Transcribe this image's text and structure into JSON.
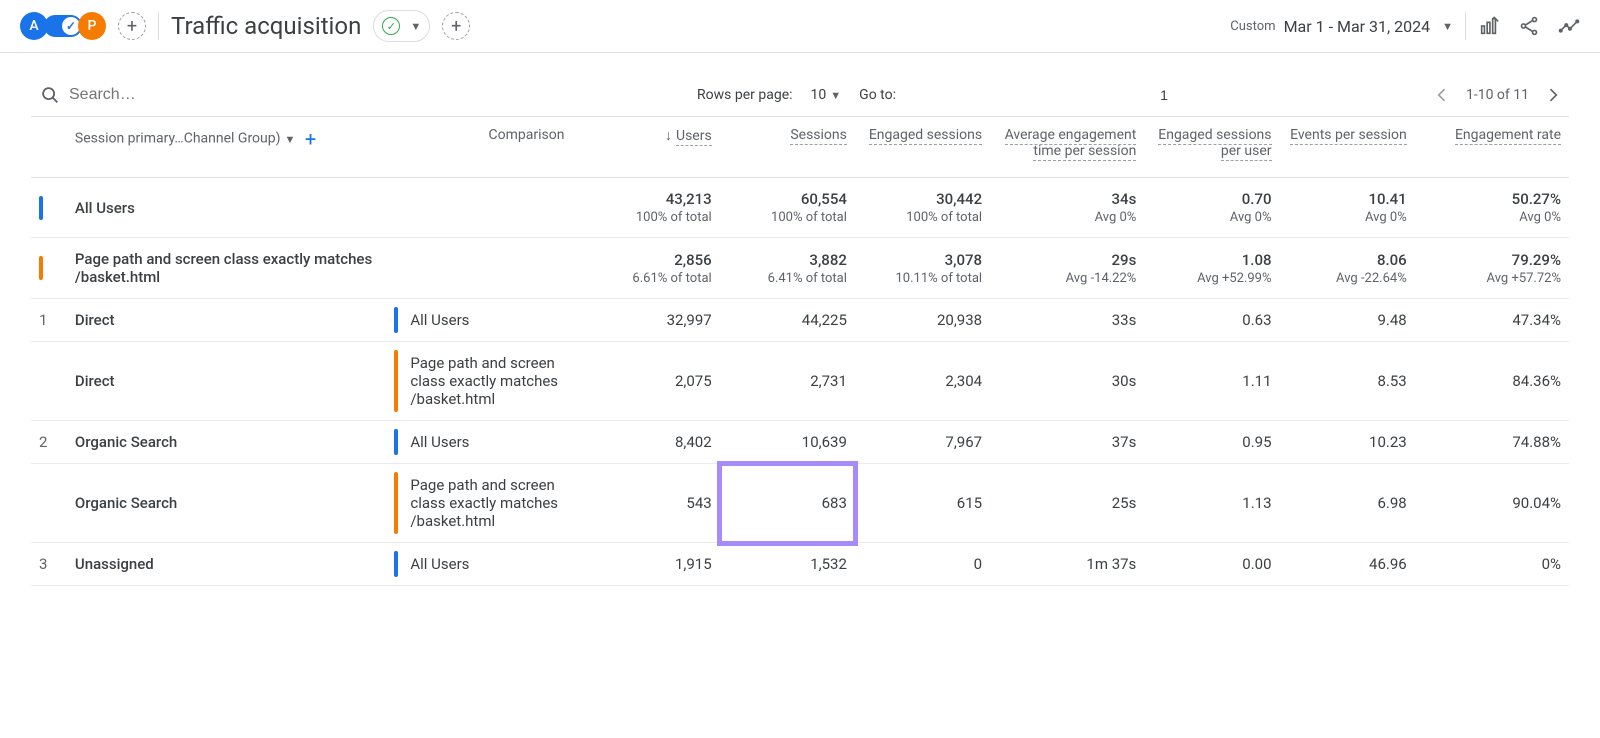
{
  "header": {
    "title": "Traffic acquisition",
    "badgeA": "A",
    "badgeP": "P",
    "dateLabel": "Custom",
    "dateRange": "Mar 1 - Mar 31, 2024"
  },
  "controls": {
    "searchPlaceholder": "Search…",
    "rowsPerPageLabel": "Rows per page:",
    "rowsPerPage": "10",
    "gotoLabel": "Go to:",
    "gotoValue": "1",
    "pageInfo": "1-10 of 11"
  },
  "columns": {
    "dimensionLabel": "Session primary…Channel Group)",
    "comparison": "Comparison",
    "users": "Users",
    "sessions": "Sessions",
    "engagedSessions": "Engaged sessions",
    "avgEngTime": "Average engagement time per session",
    "engPerUser": "Engaged sessions per user",
    "eventsPerSession": "Events per session",
    "engRate": "Engagement rate"
  },
  "segments": {
    "allUsers": "All Users",
    "basket": "Page path and screen class exactly matches /basket.html"
  },
  "summary": {
    "all": {
      "users": "43,213",
      "usersSub": "100% of total",
      "sessions": "60,554",
      "sessionsSub": "100% of total",
      "eng": "30,442",
      "engSub": "100% of total",
      "avg": "34s",
      "avgSub": "Avg 0%",
      "perUser": "0.70",
      "perUserSub": "Avg 0%",
      "events": "10.41",
      "eventsSub": "Avg 0%",
      "rate": "50.27%",
      "rateSub": "Avg 0%"
    },
    "basket": {
      "users": "2,856",
      "usersSub": "6.61% of total",
      "sessions": "3,882",
      "sessionsSub": "6.41% of total",
      "eng": "3,078",
      "engSub": "10.11% of total",
      "avg": "29s",
      "avgSub": "Avg -14.22%",
      "perUser": "1.08",
      "perUserSub": "Avg +52.99%",
      "events": "8.06",
      "eventsSub": "Avg -22.64%",
      "rate": "79.29%",
      "rateSub": "Avg +57.72%"
    }
  },
  "rows": [
    {
      "idx": "1",
      "dim": "Direct",
      "seg": "all",
      "users": "32,997",
      "sessions": "44,225",
      "eng": "20,938",
      "avg": "33s",
      "perUser": "0.63",
      "events": "9.48",
      "rate": "47.34%"
    },
    {
      "idx": "",
      "dim": "Direct",
      "seg": "basket",
      "users": "2,075",
      "sessions": "2,731",
      "eng": "2,304",
      "avg": "30s",
      "perUser": "1.11",
      "events": "8.53",
      "rate": "84.36%"
    },
    {
      "idx": "2",
      "dim": "Organic Search",
      "seg": "all",
      "users": "8,402",
      "sessions": "10,639",
      "eng": "7,967",
      "avg": "37s",
      "perUser": "0.95",
      "events": "10.23",
      "rate": "74.88%"
    },
    {
      "idx": "",
      "dim": "Organic Search",
      "seg": "basket",
      "users": "543",
      "sessions": "683",
      "eng": "615",
      "avg": "25s",
      "perUser": "1.13",
      "events": "6.98",
      "rate": "90.04%",
      "highlight": "sessions"
    },
    {
      "idx": "3",
      "dim": "Unassigned",
      "seg": "all",
      "users": "1,915",
      "sessions": "1,532",
      "eng": "0",
      "avg": "1m 37s",
      "perUser": "0.00",
      "events": "46.96",
      "rate": "0%"
    }
  ],
  "colors": {
    "segA": "#1a73e8",
    "segB": "#f57c00",
    "highlight": "#a78bfa"
  }
}
